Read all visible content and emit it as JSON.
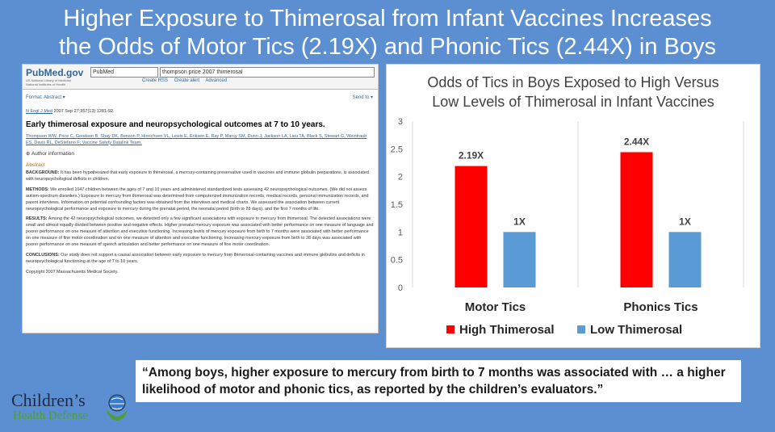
{
  "slide": {
    "title_line1": "Higher Exposure to Thimerosal from Infant Vaccines Increases",
    "title_line2": "the Odds of Motor Tics (2.19X) and Phonic Tics (2.44X) in Boys",
    "quote_line1": "“Among boys, higher exposure to mercury from birth to 7 months was associated with … a higher",
    "quote_line2": "likelihood of motor and phonic tics, as reported by the children’s evaluators.”",
    "logo_line1": "Children’s",
    "logo_line2": "Health Defense",
    "logo_icon": "hands-globe-icon"
  },
  "pubmed": {
    "logo": "PubMed.gov",
    "logo_sub": "US National Library of Medicine National Institutes of Health",
    "db_select": "PubMed",
    "query": "thompson price 2007 thimerosal",
    "links": [
      "Create RSS",
      "Create alert",
      "Advanced"
    ],
    "format": "Format: Abstract ▾",
    "send_to": "Send to ▾",
    "citation_journal": "N Engl J Med",
    "citation_rest": " 2007 Sep 27;357(13):1281-92.",
    "article_title": "Early thimerosal exposure and neuropsychological outcomes at 7 to 10 years.",
    "authors": "Thompson WW, Price C, Goodson B, Shay DK, Benson P, Hinrichsen VL, Lewis E, Eriksen E, Ray P, Marcy SM, Dunn J, Jackson LA, Lieu TA, Black S, Stewart G, Weintraub ES, Davis RL, DeStefano F; Vaccine Safety Datalink Team.",
    "author_info": "⊕ Author information",
    "abstract_heading": "Abstract",
    "background_label": "BACKGROUND:",
    "background": " It has been hypothesized that early exposure to thimerosal, a mercury-containing preservative used in vaccines and immune globulin preparations, is associated with neuropsychological deficits in children.",
    "methods_label": "METHODS:",
    "methods": " We enrolled 1047 children between the ages of 7 and 10 years and administered standardized tests assessing 42 neuropsychological outcomes. (We did not assess autism-spectrum disorders.) Exposure to mercury from thimerosal was determined from computerized immunization records, medical records, personal immunization records, and parent interviews. Information on potential confounding factors was obtained from the interviews and medical charts. We assessed the association between current neuropsychological performance and exposure to mercury during the prenatal period, the neonatal period (birth to 28 days), and the first 7 months of life.",
    "results_label": "RESULTS:",
    "results": " Among the 42 neuropsychological outcomes, we detected only a few significant associations with exposure to mercury from thimerosal. The detected associations were small and almost equally divided between positive and negative effects. Higher prenatal mercury exposure was associated with better performance on one measure of language and poorer performance on one measure of attention and executive functioning. Increasing levels of mercury exposure from birth to 7 months were associated with better performance on one measure of fine motor coordination and on one measure of attention and executive functioning. Increasing mercury exposure from birth to 28 days was associated with poorer performance on one measure of speech articulation and better performance on one measure of fine motor coordination.",
    "conclusions_label": "CONCLUSIONS:",
    "conclusions": " Our study does not support a causal association between early exposure to mercury from thimerosal-containing vaccines and immune globulins and deficits in neuropsychological functioning at the age of 7 to 10 years.",
    "copyright": "Copyright 2007 Massachusetts Medical Society."
  },
  "chart_data": {
    "type": "bar",
    "title_line1": "Odds of Tics in Boys Exposed to High Versus",
    "title_line2": "Low Levels of Thimerosal in Infant Vaccines",
    "categories": [
      "Motor Tics",
      "Phonics Tics"
    ],
    "series": [
      {
        "name": "High Thimerosal",
        "values": [
          2.19,
          2.44
        ],
        "labels": [
          "2.19X",
          "2.44X"
        ],
        "color": "#ff0000"
      },
      {
        "name": "Low Thimerosal",
        "values": [
          1,
          1
        ],
        "labels": [
          "1X",
          "1X"
        ],
        "color": "#5b9bd5"
      }
    ],
    "yticks": [
      "0",
      "0.5",
      "1",
      "1.5",
      "2",
      "2.5",
      "3"
    ],
    "ylim": [
      0,
      3
    ],
    "grid": "vertical category separators",
    "legend": "bottom"
  }
}
